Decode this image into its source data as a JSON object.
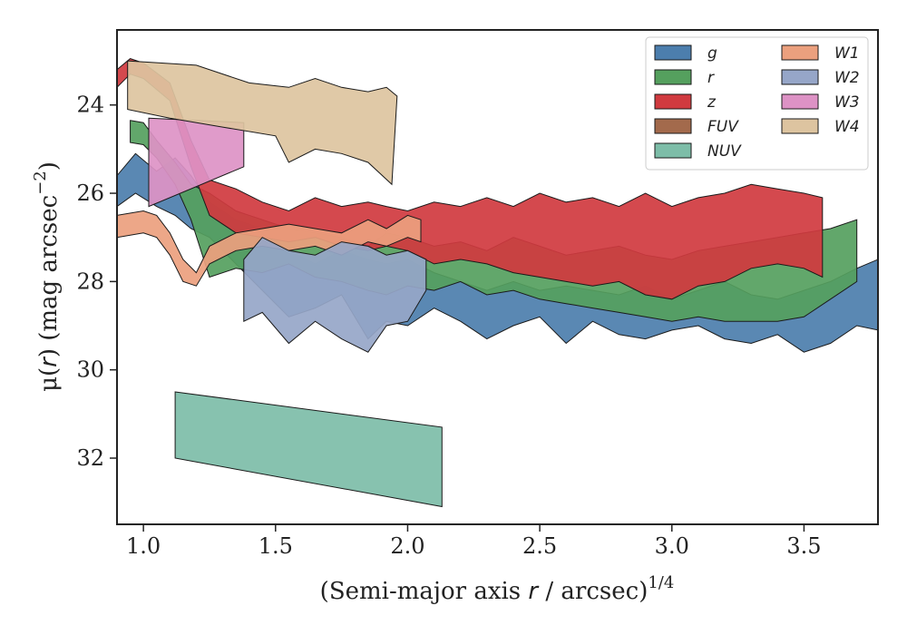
{
  "chart_data": {
    "type": "area",
    "title": "",
    "xlabel": {
      "pre": "(Semi-major axis ",
      "var": "r",
      "post": " / arcsec)",
      "sup": "1/4"
    },
    "ylabel": {
      "pre": "μ(",
      "var": "r",
      "post": ") (mag arcsec",
      "sup": "−2",
      "close": ")"
    },
    "xlim": [
      0.9,
      3.78
    ],
    "ylim": [
      33.5,
      22.3
    ],
    "y_inverted": true,
    "xticks": [
      1.0,
      1.5,
      2.0,
      2.5,
      3.0,
      3.5
    ],
    "xtick_labels": [
      "1.0",
      "1.5",
      "2.0",
      "2.5",
      "3.0",
      "3.5"
    ],
    "yticks": [
      24,
      26,
      28,
      30,
      32
    ],
    "ytick_labels": [
      "24",
      "26",
      "28",
      "30",
      "32"
    ],
    "legend_position": "top-right",
    "legend_columns": 2,
    "series": [
      {
        "name": "g",
        "color": "#4c7ead",
        "upper": [
          [
            0.9,
            25.6
          ],
          [
            0.97,
            25.1
          ],
          [
            1.05,
            25.5
          ],
          [
            1.12,
            25.2
          ],
          [
            1.18,
            25.6
          ],
          [
            1.25,
            26.2
          ],
          [
            1.35,
            26.6
          ],
          [
            1.45,
            26.8
          ],
          [
            1.55,
            27.3
          ],
          [
            1.65,
            27.6
          ],
          [
            1.75,
            27.3
          ],
          [
            1.85,
            27.5
          ],
          [
            1.92,
            27.6
          ],
          [
            2.0,
            27.5
          ],
          [
            2.1,
            27.8
          ],
          [
            2.2,
            28.0
          ],
          [
            2.3,
            28.2
          ],
          [
            2.4,
            28.0
          ],
          [
            2.5,
            28.2
          ],
          [
            2.6,
            28.1
          ],
          [
            2.7,
            28.2
          ],
          [
            2.8,
            28.3
          ],
          [
            2.9,
            28.1
          ],
          [
            3.0,
            28.4
          ],
          [
            3.1,
            28.2
          ],
          [
            3.2,
            28.0
          ],
          [
            3.3,
            28.3
          ],
          [
            3.4,
            28.4
          ],
          [
            3.5,
            28.2
          ],
          [
            3.6,
            28.0
          ],
          [
            3.7,
            27.7
          ],
          [
            3.78,
            27.5
          ]
        ],
        "lower": [
          [
            0.9,
            26.3
          ],
          [
            0.97,
            26.0
          ],
          [
            1.05,
            26.3
          ],
          [
            1.12,
            26.5
          ],
          [
            1.18,
            26.8
          ],
          [
            1.25,
            27.0
          ],
          [
            1.35,
            27.6
          ],
          [
            1.45,
            28.2
          ],
          [
            1.55,
            28.8
          ],
          [
            1.65,
            28.6
          ],
          [
            1.75,
            28.3
          ],
          [
            1.85,
            29.3
          ],
          [
            1.92,
            28.9
          ],
          [
            2.0,
            29.0
          ],
          [
            2.1,
            28.6
          ],
          [
            2.2,
            28.9
          ],
          [
            2.3,
            29.3
          ],
          [
            2.4,
            29.0
          ],
          [
            2.5,
            28.8
          ],
          [
            2.6,
            29.4
          ],
          [
            2.7,
            28.9
          ],
          [
            2.8,
            29.2
          ],
          [
            2.9,
            29.3
          ],
          [
            3.0,
            29.1
          ],
          [
            3.1,
            29.0
          ],
          [
            3.2,
            29.3
          ],
          [
            3.3,
            29.4
          ],
          [
            3.4,
            29.2
          ],
          [
            3.5,
            29.6
          ],
          [
            3.6,
            29.4
          ],
          [
            3.7,
            29.0
          ],
          [
            3.78,
            29.1
          ]
        ]
      },
      {
        "name": "r",
        "color": "#55a05e",
        "upper": [
          [
            0.95,
            24.35
          ],
          [
            1.0,
            24.4
          ],
          [
            1.05,
            24.8
          ],
          [
            1.12,
            25.3
          ],
          [
            1.18,
            25.8
          ],
          [
            1.25,
            26.0
          ],
          [
            1.35,
            26.4
          ],
          [
            1.45,
            26.6
          ],
          [
            1.55,
            26.8
          ],
          [
            1.65,
            26.9
          ],
          [
            1.75,
            27.0
          ],
          [
            1.85,
            27.2
          ],
          [
            1.92,
            26.9
          ],
          [
            2.0,
            27.0
          ],
          [
            2.1,
            27.2
          ],
          [
            2.2,
            27.1
          ],
          [
            2.3,
            27.3
          ],
          [
            2.4,
            27.0
          ],
          [
            2.5,
            27.2
          ],
          [
            2.6,
            27.4
          ],
          [
            2.7,
            27.3
          ],
          [
            2.8,
            27.2
          ],
          [
            2.9,
            27.4
          ],
          [
            3.0,
            27.5
          ],
          [
            3.1,
            27.3
          ],
          [
            3.2,
            27.2
          ],
          [
            3.3,
            27.1
          ],
          [
            3.4,
            27.0
          ],
          [
            3.5,
            26.9
          ],
          [
            3.6,
            26.8
          ],
          [
            3.7,
            26.6
          ]
        ],
        "lower": [
          [
            0.95,
            24.85
          ],
          [
            1.0,
            24.9
          ],
          [
            1.05,
            25.2
          ],
          [
            1.12,
            25.8
          ],
          [
            1.18,
            26.6
          ],
          [
            1.25,
            27.9
          ],
          [
            1.35,
            27.7
          ],
          [
            1.45,
            27.8
          ],
          [
            1.55,
            27.6
          ],
          [
            1.65,
            27.9
          ],
          [
            1.75,
            28.0
          ],
          [
            1.85,
            28.2
          ],
          [
            1.92,
            28.3
          ],
          [
            2.0,
            28.1
          ],
          [
            2.1,
            28.2
          ],
          [
            2.2,
            28.0
          ],
          [
            2.3,
            28.3
          ],
          [
            2.4,
            28.2
          ],
          [
            2.5,
            28.4
          ],
          [
            2.6,
            28.5
          ],
          [
            2.7,
            28.6
          ],
          [
            2.8,
            28.7
          ],
          [
            2.9,
            28.8
          ],
          [
            3.0,
            28.9
          ],
          [
            3.1,
            28.8
          ],
          [
            3.2,
            28.9
          ],
          [
            3.3,
            28.9
          ],
          [
            3.4,
            28.9
          ],
          [
            3.5,
            28.8
          ],
          [
            3.6,
            28.4
          ],
          [
            3.7,
            28.0
          ]
        ]
      },
      {
        "name": "z",
        "color": "#d03a3f",
        "upper": [
          [
            0.9,
            23.2
          ],
          [
            0.95,
            22.95
          ],
          [
            1.0,
            23.05
          ],
          [
            1.1,
            23.5
          ],
          [
            1.18,
            24.8
          ],
          [
            1.25,
            25.7
          ],
          [
            1.35,
            25.9
          ],
          [
            1.45,
            26.2
          ],
          [
            1.55,
            26.4
          ],
          [
            1.65,
            26.1
          ],
          [
            1.75,
            26.3
          ],
          [
            1.85,
            26.2
          ],
          [
            1.92,
            26.3
          ],
          [
            2.0,
            26.4
          ],
          [
            2.1,
            26.2
          ],
          [
            2.2,
            26.3
          ],
          [
            2.3,
            26.1
          ],
          [
            2.4,
            26.3
          ],
          [
            2.5,
            26.0
          ],
          [
            2.6,
            26.2
          ],
          [
            2.7,
            26.1
          ],
          [
            2.8,
            26.3
          ],
          [
            2.9,
            26.0
          ],
          [
            3.0,
            26.3
          ],
          [
            3.1,
            26.1
          ],
          [
            3.2,
            26.0
          ],
          [
            3.3,
            25.8
          ],
          [
            3.4,
            25.9
          ],
          [
            3.5,
            26.0
          ],
          [
            3.57,
            26.1
          ]
        ],
        "lower": [
          [
            0.9,
            23.6
          ],
          [
            0.95,
            23.3
          ],
          [
            1.0,
            23.4
          ],
          [
            1.1,
            23.9
          ],
          [
            1.18,
            25.4
          ],
          [
            1.25,
            26.5
          ],
          [
            1.35,
            26.9
          ],
          [
            1.45,
            27.0
          ],
          [
            1.55,
            27.1
          ],
          [
            1.65,
            27.0
          ],
          [
            1.75,
            27.2
          ],
          [
            1.85,
            27.3
          ],
          [
            1.92,
            27.2
          ],
          [
            2.0,
            27.3
          ],
          [
            2.1,
            27.6
          ],
          [
            2.2,
            27.5
          ],
          [
            2.3,
            27.6
          ],
          [
            2.4,
            27.8
          ],
          [
            2.5,
            27.9
          ],
          [
            2.6,
            28.0
          ],
          [
            2.7,
            28.1
          ],
          [
            2.8,
            28.0
          ],
          [
            2.9,
            28.3
          ],
          [
            3.0,
            28.4
          ],
          [
            3.1,
            28.1
          ],
          [
            3.2,
            28.0
          ],
          [
            3.3,
            27.7
          ],
          [
            3.4,
            27.6
          ],
          [
            3.5,
            27.7
          ],
          [
            3.57,
            27.9
          ]
        ]
      },
      {
        "name": "FUV",
        "color": "#a36a4c",
        "upper": [],
        "lower": []
      },
      {
        "name": "NUV",
        "color": "#7dbda8",
        "upper": [
          [
            1.12,
            30.5
          ],
          [
            2.13,
            31.3
          ]
        ],
        "lower": [
          [
            1.12,
            32.0
          ],
          [
            2.13,
            33.1
          ]
        ]
      },
      {
        "name": "W1",
        "color": "#eba07e",
        "upper": [
          [
            0.9,
            26.5
          ],
          [
            1.0,
            26.4
          ],
          [
            1.05,
            26.5
          ],
          [
            1.1,
            26.9
          ],
          [
            1.15,
            27.5
          ],
          [
            1.2,
            27.8
          ],
          [
            1.25,
            27.2
          ],
          [
            1.35,
            26.9
          ],
          [
            1.45,
            26.8
          ],
          [
            1.55,
            26.7
          ],
          [
            1.65,
            26.8
          ],
          [
            1.75,
            26.9
          ],
          [
            1.85,
            26.6
          ],
          [
            1.92,
            26.8
          ],
          [
            2.0,
            26.5
          ],
          [
            2.05,
            26.6
          ]
        ],
        "lower": [
          [
            0.9,
            27.0
          ],
          [
            1.0,
            26.9
          ],
          [
            1.05,
            27.0
          ],
          [
            1.1,
            27.4
          ],
          [
            1.15,
            28.0
          ],
          [
            1.2,
            28.1
          ],
          [
            1.25,
            27.6
          ],
          [
            1.35,
            27.3
          ],
          [
            1.45,
            27.2
          ],
          [
            1.55,
            27.3
          ],
          [
            1.65,
            27.2
          ],
          [
            1.75,
            27.4
          ],
          [
            1.85,
            27.1
          ],
          [
            1.92,
            27.2
          ],
          [
            2.0,
            27.0
          ],
          [
            2.05,
            27.1
          ]
        ]
      },
      {
        "name": "W2",
        "color": "#96a6c8",
        "upper": [
          [
            1.38,
            27.5
          ],
          [
            1.45,
            27.0
          ],
          [
            1.55,
            27.3
          ],
          [
            1.65,
            27.4
          ],
          [
            1.75,
            27.1
          ],
          [
            1.85,
            27.2
          ],
          [
            1.92,
            27.4
          ],
          [
            2.0,
            27.3
          ],
          [
            2.07,
            27.5
          ]
        ],
        "lower": [
          [
            1.38,
            28.9
          ],
          [
            1.45,
            28.7
          ],
          [
            1.55,
            29.4
          ],
          [
            1.65,
            28.9
          ],
          [
            1.75,
            29.3
          ],
          [
            1.85,
            29.6
          ],
          [
            1.92,
            29.0
          ],
          [
            2.0,
            28.9
          ],
          [
            2.07,
            28.2
          ]
        ]
      },
      {
        "name": "W3",
        "color": "#dd92c5",
        "upper": [
          [
            1.02,
            24.3
          ],
          [
            1.38,
            24.4
          ]
        ],
        "lower": [
          [
            1.02,
            26.3
          ],
          [
            1.38,
            25.4
          ]
        ]
      },
      {
        "name": "W4",
        "color": "#ddc4a0",
        "upper": [
          [
            0.94,
            23.0
          ],
          [
            1.2,
            23.1
          ],
          [
            1.4,
            23.5
          ],
          [
            1.55,
            23.6
          ],
          [
            1.65,
            23.4
          ],
          [
            1.75,
            23.6
          ],
          [
            1.85,
            23.7
          ],
          [
            1.92,
            23.6
          ],
          [
            1.96,
            23.8
          ]
        ],
        "lower": [
          [
            0.94,
            24.1
          ],
          [
            1.1,
            24.3
          ],
          [
            1.3,
            24.5
          ],
          [
            1.5,
            24.7
          ],
          [
            1.55,
            25.3
          ],
          [
            1.65,
            25.0
          ],
          [
            1.75,
            25.1
          ],
          [
            1.85,
            25.3
          ],
          [
            1.94,
            25.8
          ]
        ]
      }
    ]
  }
}
